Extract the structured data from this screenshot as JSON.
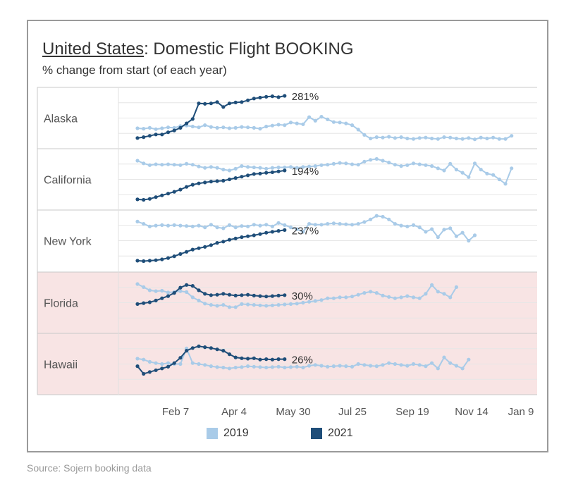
{
  "header": {
    "title_country": "United States",
    "title_rest": ": Domestic Flight BOOKING",
    "subtitle": "% change from start (of each year)"
  },
  "source": "Source: Sojern booking data",
  "colors": {
    "y2019": "#a9cbe8",
    "y2021": "#1f4e79",
    "highlight": "#f8e4e4",
    "grid": "#e6e6e6"
  },
  "chart_data": {
    "type": "line",
    "x_axis": {
      "type": "date",
      "ticks": [
        "Feb 7",
        "Apr 4",
        "May 30",
        "Jul 25",
        "Sep 19",
        "Nov 14",
        "Jan 9"
      ]
    },
    "legend": {
      "position": "bottom",
      "entries": [
        "2019",
        "2021"
      ]
    },
    "panels": [
      {
        "region": "Alaska",
        "highlight": false,
        "end_label": "281%",
        "series": [
          {
            "name": "2019",
            "values": [
              0.27,
              0.26,
              0.28,
              0.25,
              0.27,
              0.29,
              0.28,
              0.32,
              0.33,
              0.31,
              0.29,
              0.34,
              0.3,
              0.28,
              0.29,
              0.27,
              0.28,
              0.3,
              0.29,
              0.28,
              0.26,
              0.31,
              0.33,
              0.35,
              0.34,
              0.4,
              0.38,
              0.36,
              0.52,
              0.44,
              0.53,
              0.47,
              0.41,
              0.4,
              0.38,
              0.34,
              0.24,
              0.12,
              0.04,
              0.07,
              0.06,
              0.08,
              0.05,
              0.07,
              0.04,
              0.03,
              0.05,
              0.06,
              0.04,
              0.03,
              0.07,
              0.06,
              0.04,
              0.03,
              0.05,
              0.02,
              0.06,
              0.04,
              0.06,
              0.03,
              0.03,
              0.1
            ]
          },
          {
            "name": "2021",
            "values": [
              0.05,
              0.07,
              0.1,
              0.13,
              0.13,
              0.18,
              0.22,
              0.28,
              0.38,
              0.48,
              0.83,
              0.82,
              0.83,
              0.86,
              0.75,
              0.83,
              0.85,
              0.86,
              0.9,
              0.94,
              0.96,
              0.98,
              0.99,
              0.97,
              1.0
            ]
          }
        ]
      },
      {
        "region": "California",
        "highlight": false,
        "end_label": "194%",
        "series": [
          {
            "name": "2019",
            "values": [
              0.92,
              0.86,
              0.82,
              0.84,
              0.83,
              0.84,
              0.83,
              0.82,
              0.85,
              0.83,
              0.79,
              0.76,
              0.78,
              0.76,
              0.72,
              0.7,
              0.74,
              0.8,
              0.78,
              0.77,
              0.76,
              0.74,
              0.76,
              0.77,
              0.77,
              0.78,
              0.76,
              0.78,
              0.79,
              0.8,
              0.82,
              0.83,
              0.85,
              0.87,
              0.86,
              0.84,
              0.83,
              0.9,
              0.94,
              0.96,
              0.92,
              0.88,
              0.83,
              0.8,
              0.82,
              0.86,
              0.84,
              0.82,
              0.8,
              0.75,
              0.7,
              0.85,
              0.72,
              0.65,
              0.55,
              0.86,
              0.72,
              0.63,
              0.6,
              0.5,
              0.4,
              0.75
            ]
          },
          {
            "name": "2021",
            "values": [
              0.05,
              0.04,
              0.06,
              0.1,
              0.14,
              0.18,
              0.22,
              0.27,
              0.33,
              0.38,
              0.41,
              0.43,
              0.45,
              0.46,
              0.47,
              0.5,
              0.53,
              0.56,
              0.59,
              0.62,
              0.63,
              0.65,
              0.66,
              0.68,
              0.7
            ]
          }
        ]
      },
      {
        "region": "New York",
        "highlight": false,
        "end_label": "237%",
        "series": [
          {
            "name": "2019",
            "values": [
              0.93,
              0.88,
              0.82,
              0.84,
              0.85,
              0.84,
              0.85,
              0.84,
              0.83,
              0.82,
              0.84,
              0.8,
              0.86,
              0.8,
              0.78,
              0.85,
              0.8,
              0.83,
              0.82,
              0.86,
              0.84,
              0.86,
              0.82,
              0.9,
              0.85,
              0.8,
              0.76,
              0.7,
              0.88,
              0.86,
              0.86,
              0.88,
              0.89,
              0.88,
              0.87,
              0.86,
              0.88,
              0.92,
              0.98,
              1.06,
              1.04,
              0.98,
              0.88,
              0.84,
              0.82,
              0.85,
              0.8,
              0.7,
              0.76,
              0.58,
              0.75,
              0.78,
              0.6,
              0.68,
              0.5,
              0.62
            ]
          },
          {
            "name": "2021",
            "values": [
              0.05,
              0.04,
              0.05,
              0.06,
              0.08,
              0.11,
              0.15,
              0.2,
              0.25,
              0.3,
              0.33,
              0.36,
              0.4,
              0.45,
              0.48,
              0.52,
              0.55,
              0.58,
              0.6,
              0.62,
              0.65,
              0.68,
              0.7,
              0.72,
              0.74
            ]
          }
        ]
      },
      {
        "region": "Florida",
        "highlight": true,
        "end_label": "30%",
        "series": [
          {
            "name": "2019",
            "values": [
              0.92,
              0.85,
              0.78,
              0.76,
              0.77,
              0.73,
              0.74,
              0.76,
              0.74,
              0.62,
              0.55,
              0.48,
              0.45,
              0.43,
              0.45,
              0.4,
              0.4,
              0.47,
              0.46,
              0.45,
              0.44,
              0.43,
              0.44,
              0.45,
              0.46,
              0.47,
              0.48,
              0.5,
              0.52,
              0.54,
              0.56,
              0.6,
              0.6,
              0.62,
              0.62,
              0.64,
              0.68,
              0.72,
              0.75,
              0.72,
              0.66,
              0.63,
              0.6,
              0.62,
              0.65,
              0.62,
              0.6,
              0.7,
              0.9,
              0.75,
              0.7,
              0.62,
              0.85
            ]
          },
          {
            "name": "2021",
            "values": [
              0.47,
              0.49,
              0.51,
              0.55,
              0.6,
              0.65,
              0.72,
              0.84,
              0.9,
              0.88,
              0.78,
              0.7,
              0.67,
              0.68,
              0.7,
              0.68,
              0.66,
              0.67,
              0.68,
              0.66,
              0.65,
              0.64,
              0.65,
              0.66,
              0.67
            ]
          }
        ]
      },
      {
        "region": "Hawaii",
        "highlight": true,
        "end_label": "26%",
        "series": [
          {
            "name": "2019",
            "values": [
              0.62,
              0.6,
              0.55,
              0.52,
              0.5,
              0.52,
              0.5,
              0.5,
              0.85,
              0.52,
              0.5,
              0.48,
              0.45,
              0.43,
              0.42,
              0.4,
              0.42,
              0.43,
              0.45,
              0.44,
              0.43,
              0.42,
              0.43,
              0.44,
              0.42,
              0.43,
              0.44,
              0.42,
              0.46,
              0.48,
              0.46,
              0.44,
              0.45,
              0.46,
              0.45,
              0.44,
              0.5,
              0.48,
              0.46,
              0.45,
              0.48,
              0.52,
              0.5,
              0.48,
              0.46,
              0.5,
              0.48,
              0.45,
              0.52,
              0.4,
              0.65,
              0.52,
              0.46,
              0.4,
              0.6
            ]
          },
          {
            "name": "2021",
            "values": [
              0.45,
              0.28,
              0.32,
              0.36,
              0.4,
              0.44,
              0.52,
              0.64,
              0.8,
              0.86,
              0.9,
              0.88,
              0.86,
              0.83,
              0.8,
              0.72,
              0.65,
              0.63,
              0.62,
              0.63,
              0.6,
              0.61,
              0.6,
              0.61,
              0.61
            ]
          }
        ]
      }
    ]
  }
}
